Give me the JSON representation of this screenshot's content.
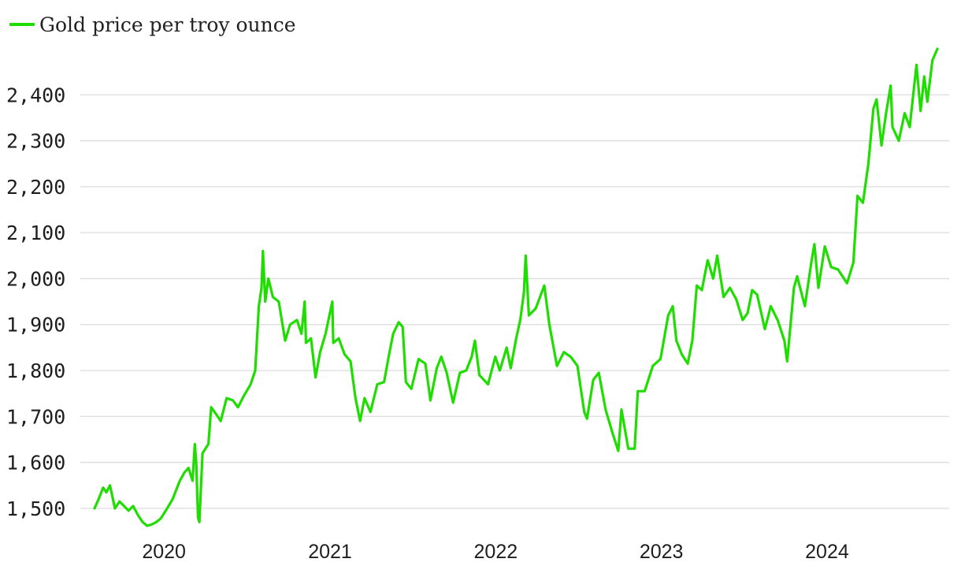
{
  "colors": {
    "series": "#1fdd00",
    "grid": "#dcdcdc",
    "text": "#1e1e1e"
  },
  "chart_data": {
    "type": "line",
    "title": "",
    "xlabel": "",
    "ylabel": "",
    "legend": {
      "placement": "top-left",
      "entries": [
        "Gold price per troy ounce"
      ]
    },
    "grid": {
      "y": true,
      "x": false
    },
    "ylim": [
      1450,
      2500
    ],
    "xlim": [
      "2019-08-01",
      "2024-08-31"
    ],
    "y_ticks": [
      1500,
      1600,
      1700,
      1800,
      1900,
      2000,
      2100,
      2200,
      2300,
      2400
    ],
    "y_tick_labels": [
      "1,500",
      "1,600",
      "1,700",
      "1,800",
      "1,900",
      "2,000",
      "2,100",
      "2,200",
      "2,300",
      "2,400"
    ],
    "x_ticks": [
      "2020-01-01",
      "2021-01-01",
      "2022-01-01",
      "2023-01-01",
      "2024-01-01"
    ],
    "x_tick_labels": [
      "2020",
      "2021",
      "2022",
      "2023",
      "2024"
    ],
    "series": [
      {
        "name": "Gold price per troy ounce",
        "points": [
          [
            "2019-08-01",
            1500
          ],
          [
            "2019-08-10",
            1520
          ],
          [
            "2019-08-20",
            1545
          ],
          [
            "2019-08-27",
            1535
          ],
          [
            "2019-09-04",
            1550
          ],
          [
            "2019-09-15",
            1500
          ],
          [
            "2019-09-25",
            1515
          ],
          [
            "2019-10-05",
            1505
          ],
          [
            "2019-10-15",
            1495
          ],
          [
            "2019-10-25",
            1505
          ],
          [
            "2019-11-05",
            1485
          ],
          [
            "2019-11-15",
            1470
          ],
          [
            "2019-11-25",
            1462
          ],
          [
            "2019-12-05",
            1465
          ],
          [
            "2019-12-15",
            1470
          ],
          [
            "2019-12-25",
            1478
          ],
          [
            "2020-01-08",
            1500
          ],
          [
            "2020-01-20",
            1520
          ],
          [
            "2020-02-05",
            1560
          ],
          [
            "2020-02-15",
            1578
          ],
          [
            "2020-02-24",
            1588
          ],
          [
            "2020-03-04",
            1560
          ],
          [
            "2020-03-09",
            1640
          ],
          [
            "2020-03-12",
            1600
          ],
          [
            "2020-03-16",
            1480
          ],
          [
            "2020-03-19",
            1470
          ],
          [
            "2020-03-26",
            1620
          ],
          [
            "2020-04-08",
            1640
          ],
          [
            "2020-04-14",
            1720
          ],
          [
            "2020-04-25",
            1705
          ],
          [
            "2020-05-05",
            1690
          ],
          [
            "2020-05-18",
            1740
          ],
          [
            "2020-06-01",
            1735
          ],
          [
            "2020-06-12",
            1720
          ],
          [
            "2020-06-25",
            1745
          ],
          [
            "2020-07-10",
            1770
          ],
          [
            "2020-07-20",
            1800
          ],
          [
            "2020-07-28",
            1940
          ],
          [
            "2020-08-03",
            1980
          ],
          [
            "2020-08-06",
            2060
          ],
          [
            "2020-08-11",
            1950
          ],
          [
            "2020-08-18",
            2000
          ],
          [
            "2020-08-28",
            1960
          ],
          [
            "2020-09-10",
            1950
          ],
          [
            "2020-09-24",
            1865
          ],
          [
            "2020-10-05",
            1900
          ],
          [
            "2020-10-20",
            1910
          ],
          [
            "2020-10-30",
            1880
          ],
          [
            "2020-11-06",
            1950
          ],
          [
            "2020-11-09",
            1860
          ],
          [
            "2020-11-20",
            1870
          ],
          [
            "2020-11-30",
            1785
          ],
          [
            "2020-12-10",
            1840
          ],
          [
            "2020-12-22",
            1880
          ],
          [
            "2021-01-06",
            1950
          ],
          [
            "2021-01-08",
            1860
          ],
          [
            "2021-01-20",
            1870
          ],
          [
            "2021-02-02",
            1835
          ],
          [
            "2021-02-15",
            1820
          ],
          [
            "2021-02-26",
            1740
          ],
          [
            "2021-03-08",
            1690
          ],
          [
            "2021-03-18",
            1740
          ],
          [
            "2021-03-31",
            1710
          ],
          [
            "2021-04-15",
            1770
          ],
          [
            "2021-04-30",
            1775
          ],
          [
            "2021-05-10",
            1830
          ],
          [
            "2021-05-20",
            1880
          ],
          [
            "2021-06-01",
            1905
          ],
          [
            "2021-06-10",
            1895
          ],
          [
            "2021-06-17",
            1775
          ],
          [
            "2021-06-29",
            1760
          ],
          [
            "2021-07-15",
            1825
          ],
          [
            "2021-07-30",
            1815
          ],
          [
            "2021-08-06",
            1765
          ],
          [
            "2021-08-10",
            1735
          ],
          [
            "2021-08-24",
            1805
          ],
          [
            "2021-09-03",
            1830
          ],
          [
            "2021-09-15",
            1795
          ],
          [
            "2021-09-29",
            1730
          ],
          [
            "2021-10-14",
            1795
          ],
          [
            "2021-10-28",
            1800
          ],
          [
            "2021-11-09",
            1830
          ],
          [
            "2021-11-16",
            1865
          ],
          [
            "2021-11-26",
            1790
          ],
          [
            "2021-12-15",
            1770
          ],
          [
            "2021-12-31",
            1830
          ],
          [
            "2022-01-10",
            1800
          ],
          [
            "2022-01-25",
            1850
          ],
          [
            "2022-02-03",
            1805
          ],
          [
            "2022-02-15",
            1870
          ],
          [
            "2022-02-24",
            1910
          ],
          [
            "2022-03-04",
            1970
          ],
          [
            "2022-03-08",
            2050
          ],
          [
            "2022-03-15",
            1920
          ],
          [
            "2022-03-30",
            1935
          ],
          [
            "2022-04-18",
            1985
          ],
          [
            "2022-04-29",
            1900
          ],
          [
            "2022-05-16",
            1810
          ],
          [
            "2022-05-31",
            1840
          ],
          [
            "2022-06-15",
            1830
          ],
          [
            "2022-06-30",
            1810
          ],
          [
            "2022-07-15",
            1710
          ],
          [
            "2022-07-21",
            1695
          ],
          [
            "2022-08-04",
            1780
          ],
          [
            "2022-08-16",
            1795
          ],
          [
            "2022-08-31",
            1715
          ],
          [
            "2022-09-15",
            1665
          ],
          [
            "2022-09-28",
            1625
          ],
          [
            "2022-10-05",
            1715
          ],
          [
            "2022-10-20",
            1630
          ],
          [
            "2022-11-03",
            1630
          ],
          [
            "2022-11-10",
            1755
          ],
          [
            "2022-11-25",
            1755
          ],
          [
            "2022-12-13",
            1810
          ],
          [
            "2022-12-30",
            1825
          ],
          [
            "2023-01-16",
            1920
          ],
          [
            "2023-01-26",
            1940
          ],
          [
            "2023-02-03",
            1865
          ],
          [
            "2023-02-15",
            1835
          ],
          [
            "2023-02-28",
            1815
          ],
          [
            "2023-03-10",
            1865
          ],
          [
            "2023-03-20",
            1985
          ],
          [
            "2023-03-31",
            1975
          ],
          [
            "2023-04-13",
            2040
          ],
          [
            "2023-04-25",
            2000
          ],
          [
            "2023-05-04",
            2050
          ],
          [
            "2023-05-18",
            1960
          ],
          [
            "2023-06-01",
            1980
          ],
          [
            "2023-06-15",
            1955
          ],
          [
            "2023-06-29",
            1910
          ],
          [
            "2023-07-10",
            1925
          ],
          [
            "2023-07-20",
            1975
          ],
          [
            "2023-07-31",
            1965
          ],
          [
            "2023-08-17",
            1890
          ],
          [
            "2023-08-30",
            1940
          ],
          [
            "2023-09-14",
            1910
          ],
          [
            "2023-09-29",
            1865
          ],
          [
            "2023-10-05",
            1820
          ],
          [
            "2023-10-20",
            1980
          ],
          [
            "2023-10-27",
            2005
          ],
          [
            "2023-11-13",
            1940
          ],
          [
            "2023-11-28",
            2040
          ],
          [
            "2023-12-04",
            2075
          ],
          [
            "2023-12-13",
            1980
          ],
          [
            "2023-12-27",
            2070
          ],
          [
            "2024-01-10",
            2025
          ],
          [
            "2024-01-25",
            2020
          ],
          [
            "2024-02-14",
            1990
          ],
          [
            "2024-02-28",
            2035
          ],
          [
            "2024-03-08",
            2180
          ],
          [
            "2024-03-20",
            2165
          ],
          [
            "2024-04-01",
            2250
          ],
          [
            "2024-04-12",
            2370
          ],
          [
            "2024-04-19",
            2390
          ],
          [
            "2024-04-30",
            2290
          ],
          [
            "2024-05-10",
            2360
          ],
          [
            "2024-05-20",
            2420
          ],
          [
            "2024-05-24",
            2330
          ],
          [
            "2024-06-07",
            2300
          ],
          [
            "2024-06-20",
            2360
          ],
          [
            "2024-07-01",
            2330
          ],
          [
            "2024-07-16",
            2465
          ],
          [
            "2024-07-25",
            2365
          ],
          [
            "2024-08-02",
            2440
          ],
          [
            "2024-08-09",
            2385
          ],
          [
            "2024-08-20",
            2475
          ],
          [
            "2024-08-31",
            2500
          ]
        ]
      }
    ]
  }
}
